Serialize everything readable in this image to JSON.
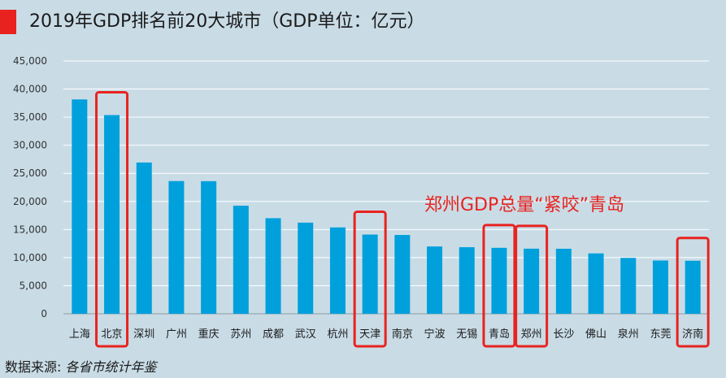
{
  "header": {
    "title": "2019年GDP排名前20大城市（GDP单位：亿元）",
    "accent_color": "#e8231f"
  },
  "source": {
    "label": "数据来源:",
    "name": "各省市统计年鉴"
  },
  "annotation": {
    "text": "郑州GDP总量“紧咬”青岛",
    "color": "#e8231f"
  },
  "chart_data": {
    "type": "bar",
    "title": "2019年GDP排名前20大城市（GDP单位：亿元）",
    "xlabel": "",
    "ylabel": "",
    "ylim": [
      0,
      45000
    ],
    "yticks": [
      0,
      5000,
      10000,
      15000,
      20000,
      25000,
      30000,
      35000,
      40000,
      45000
    ],
    "ytick_labels": [
      "0",
      "5,000",
      "10,000",
      "15,000",
      "20,000",
      "25,000",
      "30,000",
      "35,000",
      "40,000",
      "45,000"
    ],
    "grid": true,
    "bar_color": "#00a0dc",
    "highlight_color": "#e8231f",
    "categories": [
      "上海",
      "北京",
      "深圳",
      "广州",
      "重庆",
      "苏州",
      "成都",
      "武汉",
      "杭州",
      "天津",
      "南京",
      "宁波",
      "无锡",
      "青岛",
      "郑州",
      "长沙",
      "佛山",
      "泉州",
      "东莞",
      "济南"
    ],
    "values": [
      38155,
      35371,
      26927,
      23629,
      23606,
      19236,
      17013,
      16223,
      15373,
      14104,
      14031,
      11985,
      11852,
      11741,
      11590,
      11574,
      10751,
      9947,
      9482,
      9443
    ],
    "highlighted": [
      "北京",
      "天津",
      "青岛",
      "郑州",
      "济南"
    ]
  }
}
